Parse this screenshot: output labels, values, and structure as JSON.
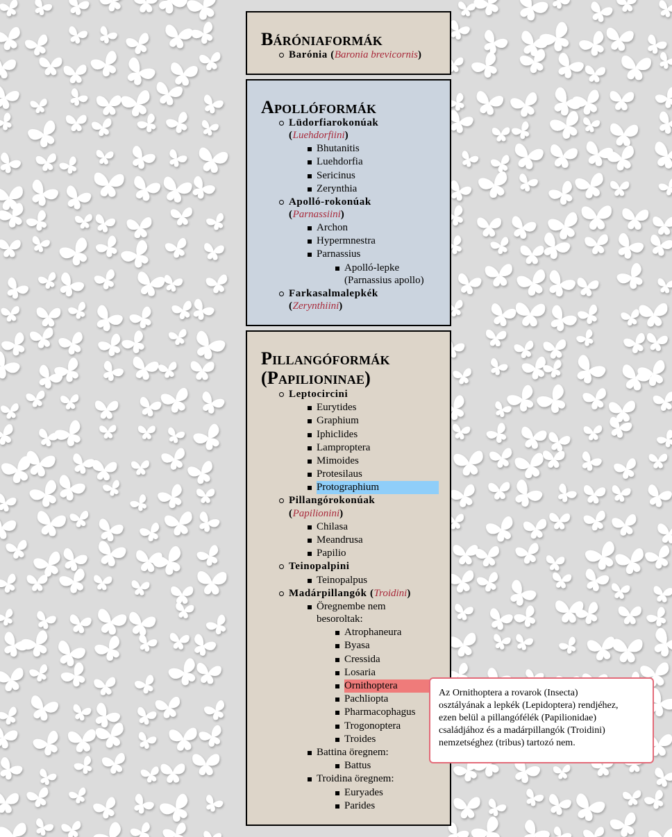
{
  "panels": {
    "baronia": {
      "title": "Bárónia­formák",
      "items": [
        {
          "name": "Barónia",
          "latin": "Baronia brevicornis"
        }
      ]
    },
    "apollo": {
      "title": "Apollóformák",
      "groups": [
        {
          "name": "Lüdorfiarokonúak",
          "latin": "Luehdorfiini",
          "genera": [
            "Bhutanitis",
            "Luehdorfia",
            "Sericinus",
            "Zerynthia"
          ]
        },
        {
          "name": "Apolló-rokonúak",
          "latin": "Parnassiini",
          "genera": [
            "Archon",
            "Hypermnestra",
            "Parnassius"
          ],
          "species": [
            "Apolló-lepke",
            "(Parnassius apollo)"
          ]
        },
        {
          "name": "Farkasalmalepkék",
          "latin": "Zerynthiini"
        }
      ]
    },
    "pillango": {
      "title_line1": "Pillangóformák",
      "title_line2": "(Papilioninae)",
      "groups": [
        {
          "name": "Leptocircini",
          "genera": [
            "Eurytides",
            "Graphium",
            "Iphiclides",
            "Lamproptera",
            "Mimoides",
            "Protesilaus",
            "Protographium"
          ]
        },
        {
          "name": "Pillangórokonúak",
          "latin": "Papilionini",
          "genera": [
            "Chilasa",
            "Meandrusa",
            "Papilio"
          ]
        },
        {
          "name": "Teinopalpini",
          "genera": [
            "Teinopalpus"
          ]
        },
        {
          "name": "Madárpillangók",
          "latin": "Troidini",
          "subgroups": [
            {
              "label_line1": "Öregnembe nem",
              "label_line2": "besoroltak:",
              "genera": [
                "Atrophaneura",
                "Byasa",
                "Cressida",
                "Losaria",
                "Ornithoptera",
                "Pachliopta",
                "Pharmacophagus",
                "Trogonoptera",
                "Troides"
              ]
            },
            {
              "label": "Battina öregnem:",
              "genera": [
                "Battus"
              ]
            },
            {
              "label": "Troidina öregnem:",
              "genera": [
                "Euryades",
                "Parides"
              ]
            }
          ]
        }
      ]
    }
  },
  "tooltip": {
    "lines": [
      "Az Ornithoptera a rovarok (Insecta)",
      "osztályának a lepkék (Lepidoptera) rendjéhez,",
      "ezen belül a pillangófélék (Papilionidae)",
      "családjához és a madárpillangók (Troidini)",
      "nemzetséghez (tribus) tartozó nem."
    ]
  },
  "colors": {
    "background": "#dcdcdc",
    "panel_beige": "#ddd5c9",
    "panel_blue": "#cbd4df",
    "latin_text": "#a8293a",
    "highlight_blue": "#8fcef9",
    "highlight_red": "#ef7b7a",
    "tooltip_border": "#e36a78"
  },
  "decor": {
    "background_pattern": "butterfly-icon"
  }
}
